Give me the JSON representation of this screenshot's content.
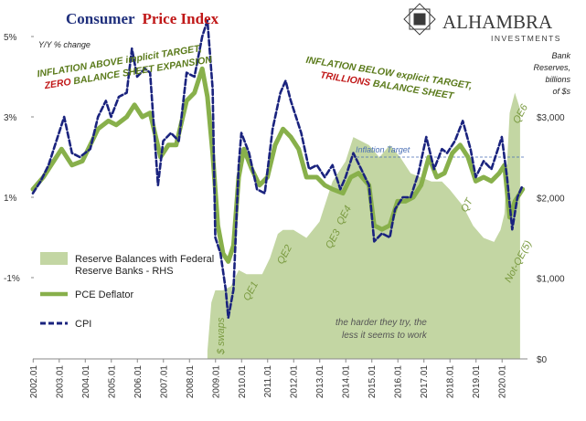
{
  "title": {
    "part1": "Consumer",
    "part2": "Price Index"
  },
  "brand": {
    "name": "ALHAMBRA",
    "sub": "INVESTMENTS"
  },
  "axes": {
    "left_unit": "Y/Y % change",
    "right_unit_lines": [
      "Bank",
      "Reserves,",
      "billions",
      "of $s"
    ]
  },
  "annotations": {
    "left_line1": "INFLATION ABOVE implicit TARGET,",
    "left_line2a": "ZERO",
    "left_line2b": " BALANCE SHEET EXPANSION",
    "right_line1": "INFLATION BELOW explicit TARGET,",
    "right_line2a": "TRILLIONS",
    "right_line2b": " BALANCE SHEET",
    "target_label": "Inflation Target",
    "footer_line1": "the harder they try, the",
    "footer_line2": "less it seems to work",
    "phases": [
      "$ swaps",
      "QE1",
      "QE2",
      "QE3",
      "QE4",
      "QT",
      "Not-QE(5)",
      "QE6"
    ]
  },
  "legend": {
    "reserves_line1": "Reserve Balances with Federal",
    "reserves_line2": "Reserve Banks - RHS",
    "pce": "PCE Deflator",
    "cpi": "CPI"
  },
  "colors": {
    "title_navy": "#1f2f7c",
    "title_red": "#c01818",
    "olive_text": "#5a7a1a",
    "reserves_fill": "#c3d6a3",
    "pce_line": "#88b04b",
    "cpi_line": "#1a237e",
    "target_line": "#4a6fb5"
  },
  "chart_data": {
    "type": "line",
    "title": "Consumer Price Index",
    "ylabel": "Y/Y % change",
    "ylabel_right": "Bank Reserves, billions of $s",
    "ylim": [
      -3,
      5
    ],
    "ylim_right": [
      0,
      3500
    ],
    "yticks": [
      "5%",
      "3%",
      "1%",
      "-1%"
    ],
    "yticks_right": [
      "$3,000",
      "$2,000",
      "$1,000",
      "$0"
    ],
    "xticks": [
      "2002.01",
      "2003.01",
      "2004.01",
      "2005.01",
      "2006.01",
      "2007.01",
      "2008.01",
      "2009.01",
      "2010.01",
      "2011.01",
      "2012.01",
      "2013.01",
      "2014.01",
      "2015.01",
      "2016.01",
      "2017.01",
      "2018.01",
      "2019.01",
      "2020.01"
    ],
    "target": 2.0,
    "series": [
      {
        "name": "CPI",
        "axis": "left",
        "color": "#1a237e",
        "x": [
          2002.0,
          2002.3,
          2002.6,
          2003.0,
          2003.2,
          2003.5,
          2003.8,
          2004.2,
          2004.5,
          2004.8,
          2005.0,
          2005.3,
          2005.6,
          2005.8,
          2006.0,
          2006.3,
          2006.5,
          2006.8,
          2007.0,
          2007.3,
          2007.6,
          2007.9,
          2008.2,
          2008.5,
          2008.7,
          2008.9,
          2009.0,
          2009.2,
          2009.4,
          2009.5,
          2009.7,
          2009.9,
          2010.0,
          2010.3,
          2010.6,
          2010.9,
          2011.2,
          2011.5,
          2011.7,
          2011.9,
          2012.3,
          2012.6,
          2012.9,
          2013.2,
          2013.5,
          2013.8,
          2014.0,
          2014.3,
          2014.6,
          2014.9,
          2015.1,
          2015.4,
          2015.7,
          2015.9,
          2016.2,
          2016.5,
          2016.8,
          2017.1,
          2017.4,
          2017.7,
          2017.9,
          2018.2,
          2018.5,
          2018.8,
          2019.0,
          2019.3,
          2019.6,
          2019.9,
          2020.0,
          2020.2,
          2020.4,
          2020.6,
          2020.8
        ],
        "y": [
          1.1,
          1.4,
          1.8,
          2.6,
          3.0,
          2.1,
          2.0,
          2.2,
          3.0,
          3.4,
          3.0,
          3.5,
          3.6,
          4.7,
          4.0,
          4.2,
          4.1,
          1.3,
          2.4,
          2.6,
          2.4,
          4.1,
          4.0,
          5.0,
          5.4,
          3.7,
          0.0,
          -0.4,
          -1.3,
          -2.0,
          -1.3,
          1.8,
          2.6,
          2.1,
          1.2,
          1.1,
          2.7,
          3.6,
          3.9,
          3.4,
          2.6,
          1.7,
          1.8,
          1.5,
          1.8,
          1.2,
          1.5,
          2.1,
          1.7,
          1.3,
          -0.1,
          0.1,
          0.0,
          0.7,
          1.0,
          1.0,
          1.6,
          2.5,
          1.7,
          2.2,
          2.1,
          2.4,
          2.9,
          2.2,
          1.5,
          1.9,
          1.7,
          2.3,
          2.5,
          1.5,
          0.2,
          1.0,
          1.3
        ]
      },
      {
        "name": "PCE Deflator",
        "axis": "left",
        "color": "#88b04b",
        "x": [
          2002.0,
          2002.4,
          2002.8,
          2003.1,
          2003.5,
          2003.9,
          2004.2,
          2004.5,
          2004.9,
          2005.2,
          2005.6,
          2005.9,
          2006.2,
          2006.5,
          2006.9,
          2007.2,
          2007.5,
          2007.9,
          2008.2,
          2008.5,
          2008.7,
          2008.9,
          2009.1,
          2009.3,
          2009.5,
          2009.7,
          2009.9,
          2010.1,
          2010.4,
          2010.7,
          2011.0,
          2011.3,
          2011.6,
          2011.9,
          2012.2,
          2012.5,
          2012.9,
          2013.2,
          2013.5,
          2013.9,
          2014.2,
          2014.5,
          2014.9,
          2015.1,
          2015.4,
          2015.7,
          2016.0,
          2016.3,
          2016.6,
          2016.9,
          2017.2,
          2017.5,
          2017.8,
          2018.1,
          2018.4,
          2018.7,
          2019.0,
          2019.3,
          2019.6,
          2019.9,
          2020.1,
          2020.3,
          2020.5,
          2020.8
        ],
        "y": [
          1.2,
          1.5,
          1.9,
          2.2,
          1.8,
          1.9,
          2.3,
          2.7,
          2.9,
          2.8,
          3.0,
          3.3,
          3.0,
          3.1,
          2.0,
          2.3,
          2.3,
          3.4,
          3.6,
          4.2,
          3.5,
          2.1,
          0.3,
          -0.4,
          -0.6,
          -0.2,
          1.5,
          2.2,
          1.7,
          1.3,
          1.5,
          2.3,
          2.7,
          2.5,
          2.2,
          1.5,
          1.5,
          1.3,
          1.2,
          1.1,
          1.5,
          1.6,
          1.3,
          0.3,
          0.2,
          0.3,
          0.9,
          0.9,
          1.0,
          1.3,
          2.0,
          1.5,
          1.6,
          2.1,
          2.3,
          2.0,
          1.4,
          1.5,
          1.4,
          1.6,
          1.8,
          0.5,
          0.9,
          1.2
        ]
      },
      {
        "name": "Reserve Balances with Federal Reserve Banks - RHS",
        "axis": "right",
        "color": "#c3d6a3",
        "x": [
          2008.7,
          2008.85,
          2009.0,
          2009.3,
          2009.6,
          2009.9,
          2010.2,
          2010.5,
          2010.8,
          2011.1,
          2011.4,
          2011.6,
          2012.0,
          2012.5,
          2013.0,
          2013.5,
          2014.0,
          2014.3,
          2014.6,
          2014.9,
          2015.3,
          2015.7,
          2016.1,
          2016.5,
          2016.9,
          2017.3,
          2017.7,
          2018.0,
          2018.5,
          2018.9,
          2019.3,
          2019.7,
          2019.95,
          2020.1,
          2020.3,
          2020.5,
          2020.7
        ],
        "y": [
          100,
          700,
          850,
          850,
          900,
          1100,
          1050,
          1050,
          1050,
          1250,
          1550,
          1600,
          1600,
          1500,
          1700,
          2200,
          2450,
          2750,
          2700,
          2650,
          2500,
          2650,
          2500,
          2300,
          2250,
          2200,
          2200,
          2100,
          1900,
          1650,
          1500,
          1450,
          1600,
          1800,
          3050,
          3300,
          3100
        ]
      }
    ]
  }
}
